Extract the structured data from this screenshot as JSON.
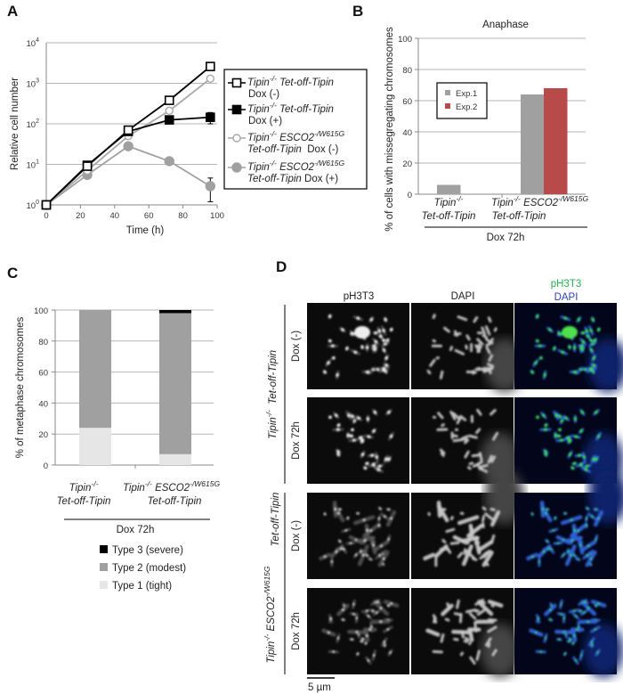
{
  "panels": {
    "a": "A",
    "b": "B",
    "c": "C",
    "d": "D"
  },
  "genotypes": {
    "tipin_gene": "Tipin",
    "tipin_sup": "-/-",
    "esco2_gene": "ESCO2",
    "esco2_sup": "-/W615G",
    "construct": "Tet-off-Tipin"
  },
  "conditions": {
    "dox_minus": "Dox (-)",
    "dox_plus": "Dox (+)",
    "dox_72h": "Dox 72h"
  },
  "colors": {
    "exp1": "#a0a0a0",
    "exp2": "#b94a4a",
    "type1": "#e6e6e6",
    "type2": "#a0a0a0",
    "type3": "#000000",
    "green": "#22b14c",
    "blue": "#2b3fb8"
  },
  "chart_data": [
    {
      "type": "line",
      "panel": "A",
      "xlabel": "Time (h)",
      "ylabel": "Relative cell number",
      "xlim": [
        0,
        100
      ],
      "xticks": [
        "0",
        "20",
        "40",
        "60",
        "80",
        "100"
      ],
      "ylim": [
        1,
        10000
      ],
      "yscale": "log",
      "ytick_base": "10",
      "ytick_exponents": [
        "0",
        "1",
        "2",
        "3",
        "4"
      ],
      "grid": "horizontal",
      "legend_position": "right",
      "x": [
        0,
        24,
        48,
        72,
        96
      ],
      "series": [
        {
          "name": "Tipin-/- Tet-off-Tipin Dox (-)",
          "marker": "open-square",
          "color": "#000000",
          "values": [
            1,
            9,
            70,
            380,
            2600
          ]
        },
        {
          "name": "Tipin-/- Tet-off-Tipin Dox (+)",
          "marker": "filled-square",
          "color": "#000000",
          "values": [
            1,
            9.5,
            65,
            125,
            145
          ],
          "error": [
            0,
            0,
            0,
            25,
            45
          ]
        },
        {
          "name": "Tipin-/- ESCO2-/W615G Tet-off-Tipin Dox (-)",
          "marker": "open-circle",
          "color": "#a8a8a8",
          "values": [
            1,
            7,
            50,
            210,
            1300
          ]
        },
        {
          "name": "Tipin-/- ESCO2-/W615G Tet-off-Tipin Dox (+)",
          "marker": "filled-circle",
          "color": "#a0a0a0",
          "values": [
            1,
            5.5,
            28,
            12,
            2.9
          ],
          "error": [
            0,
            0,
            0,
            0,
            1.7
          ]
        }
      ]
    },
    {
      "type": "bar",
      "panel": "B",
      "title": "Anaphase",
      "ylabel": "% of cells with missegregating chromosomes",
      "xlabel": "Dox 72h",
      "ylim": [
        0,
        100
      ],
      "yticks": [
        "0",
        "20",
        "40",
        "60",
        "80",
        "100"
      ],
      "grid": "horizontal",
      "legend_position": "top-left",
      "categories": [
        "Tipin-/- Tet-off-Tipin",
        "Tipin-/- ESCO2-/W615G Tet-off-Tipin"
      ],
      "series": [
        {
          "name": "Exp.1",
          "values": [
            6,
            64
          ]
        },
        {
          "name": "Exp.2",
          "values": [
            null,
            68
          ]
        }
      ]
    },
    {
      "type": "bar",
      "stacked": true,
      "panel": "C",
      "ylabel": "% of metaphase chromosomes",
      "xlabel": "Dox 72h",
      "ylim": [
        0,
        100
      ],
      "yticks": [
        "0",
        "20",
        "40",
        "60",
        "80",
        "100"
      ],
      "grid": "horizontal",
      "legend_position": "bottom",
      "categories": [
        "Tipin-/- Tet-off-Tipin",
        "Tipin-/- ESCO2-/W615G Tet-off-Tipin"
      ],
      "series": [
        {
          "name": "Type 1 (tight)",
          "values": [
            24,
            7
          ]
        },
        {
          "name": "Type 2 (modest)",
          "values": [
            76,
            91
          ]
        },
        {
          "name": "Type 3 (severe)",
          "values": [
            0,
            2
          ]
        }
      ],
      "legend_order": [
        "Type 3 (severe)",
        "Type 2 (modest)",
        "Type 1 (tight)"
      ]
    }
  ],
  "micrographs": {
    "columns": [
      "pH3T3",
      "DAPI"
    ],
    "merge_labels": [
      "pH3T3",
      "DAPI"
    ],
    "scale_bar": "5 µm"
  }
}
